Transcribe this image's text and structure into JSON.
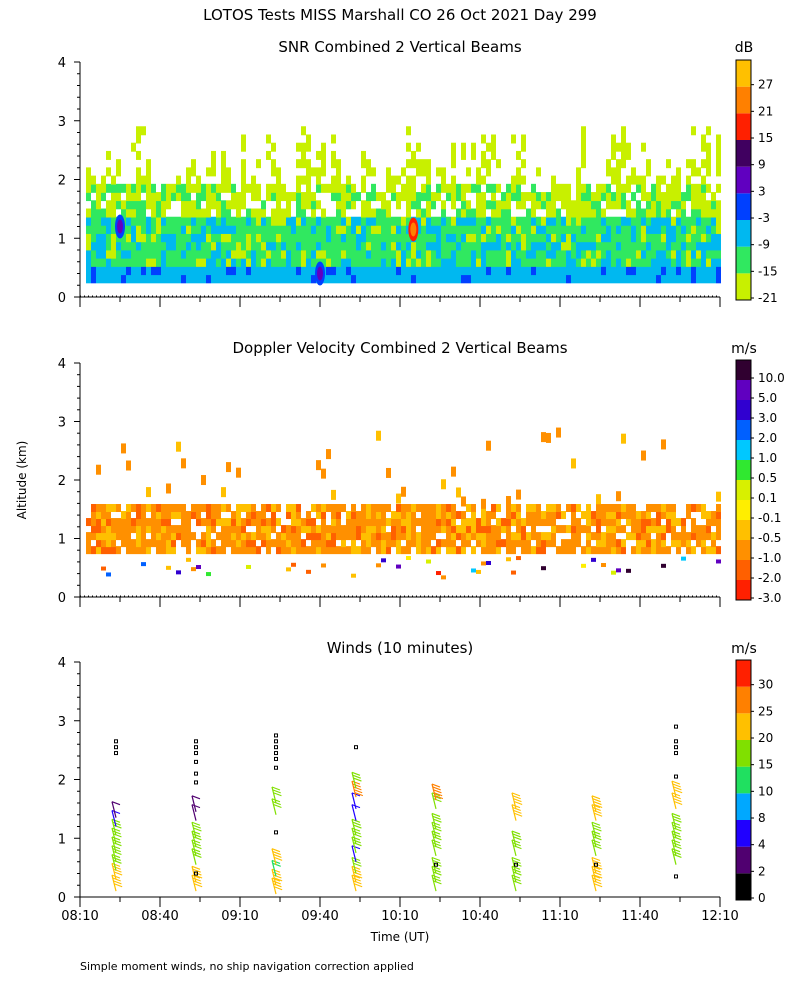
{
  "figure": {
    "title": "LOTOS Tests MISS Marshall CO  26 Oct 2021 Day 299",
    "ylabel": "Altitude (km)",
    "xlabel": "Time (UT)",
    "footnote": "Simple moment winds, no ship navigation correction applied"
  },
  "x_ticks": [
    "08:10",
    "08:40",
    "09:10",
    "09:40",
    "10:10",
    "10:40",
    "11:10",
    "11:40",
    "12:10"
  ],
  "y_ticks": [
    "0",
    "1",
    "2",
    "3",
    "4"
  ],
  "colorbars": [
    {
      "unit": "dB",
      "colors": [
        "#c8f000",
        "#30e860",
        "#00b8f0",
        "#0040ff",
        "#6000c0",
        "#400060",
        "#ff2000",
        "#ff8000",
        "#ffc000"
      ],
      "labels": [
        "-21",
        "-15",
        "-9",
        "-3",
        "3",
        "9",
        "15",
        "21",
        "27"
      ]
    },
    {
      "unit": "m/s",
      "colors": [
        "#ff2000",
        "#ff6000",
        "#ff9000",
        "#ffc000",
        "#ffee00",
        "#d8f000",
        "#30e830",
        "#00c8ff",
        "#0060ff",
        "#3000d0",
        "#6000c0",
        "#300030"
      ],
      "labels": [
        "-3.0",
        "-2.0",
        "-1.0",
        "-0.5",
        "-0.1",
        "0.1",
        "0.5",
        "1.0",
        "2.0",
        "3.0",
        "5.0",
        "10.0"
      ]
    },
    {
      "unit": "m/s",
      "colors": [
        "#000000",
        "#500070",
        "#2000ff",
        "#00a8ff",
        "#20e060",
        "#80e000",
        "#ffc000",
        "#ff8000",
        "#ff2000"
      ],
      "labels": [
        "0",
        "2",
        "4",
        "8",
        "10",
        "15",
        "20",
        "25",
        "30"
      ]
    }
  ],
  "chart_data": [
    {
      "type": "heatmap",
      "title": "SNR Combined 2 Vertical Beams",
      "xlabel": "",
      "ylabel": "Altitude (km)",
      "xlim": [
        "08:10",
        "12:10"
      ],
      "ylim": [
        0,
        4
      ],
      "unit": "dB",
      "colorscale": [
        -21,
        -15,
        -9,
        -3,
        3,
        9,
        15,
        21,
        27
      ],
      "features": [
        {
          "desc": "lowest band",
          "alt_km": [
            0.25,
            0.45
          ],
          "snr_db": -9
        },
        {
          "desc": "mid band",
          "alt_km": [
            0.45,
            1.3
          ],
          "snr_db": -15
        },
        {
          "desc": "upper band",
          "alt_km": [
            1.3,
            3.3
          ],
          "snr_db": -21
        },
        {
          "desc": "peak",
          "time": "08:25",
          "alt_km": 1.2,
          "snr_db": 3
        },
        {
          "desc": "peak",
          "time": "09:40",
          "alt_km": 0.4,
          "snr_db": 3
        },
        {
          "desc": "peak",
          "time": "10:15",
          "alt_km": 1.15,
          "snr_db": 21
        }
      ]
    },
    {
      "type": "heatmap",
      "title": "Doppler Velocity Combined 2 Vertical Beams",
      "xlabel": "",
      "ylabel": "Altitude (km)",
      "xlim": [
        "08:10",
        "12:10"
      ],
      "ylim": [
        0,
        4
      ],
      "unit": "m/s",
      "colorscale": [
        -3.0,
        -2.0,
        -1.0,
        -0.5,
        -0.1,
        0.1,
        0.5,
        1.0,
        2.0,
        3.0,
        5.0,
        10.0
      ],
      "features": [
        {
          "desc": "dominant layer",
          "alt_km": [
            0.7,
            1.5
          ],
          "velocity_ms": -1.0
        },
        {
          "desc": "sparse patches",
          "alt_km": [
            1.5,
            2.9
          ],
          "velocity_ms": -1.0
        },
        {
          "desc": "mixed band",
          "alt_km": [
            0.3,
            0.7
          ],
          "velocity_ms": -2.0
        }
      ]
    },
    {
      "type": "scatter",
      "title": "Winds (10 minutes)",
      "xlabel": "Time (UT)",
      "ylabel": "Altitude (km)",
      "xlim": [
        "08:10",
        "12:10"
      ],
      "ylim": [
        0,
        4
      ],
      "unit": "m/s",
      "colorscale": [
        0,
        2,
        4,
        8,
        10,
        15,
        20,
        25,
        30
      ],
      "profiles": [
        {
          "time": "08:25",
          "barbs": [
            {
              "alt": 0.1,
              "speed": 20
            },
            {
              "alt": 0.3,
              "speed": 20
            },
            {
              "alt": 0.45,
              "speed": 15
            },
            {
              "alt": 0.6,
              "speed": 15
            },
            {
              "alt": 0.75,
              "speed": 15
            },
            {
              "alt": 0.9,
              "speed": 15
            },
            {
              "alt": 1.05,
              "speed": 15
            },
            {
              "alt": 1.2,
              "speed": 4
            },
            {
              "alt": 1.35,
              "speed": 2
            },
            {
              "alt": 2.45,
              "speed": 0
            },
            {
              "alt": 2.55,
              "speed": 0
            },
            {
              "alt": 2.65,
              "speed": 0
            }
          ]
        },
        {
          "time": "08:55",
          "barbs": [
            {
              "alt": 0.1,
              "speed": 20
            },
            {
              "alt": 0.25,
              "speed": 20
            },
            {
              "alt": 0.4,
              "speed": 0
            },
            {
              "alt": 0.55,
              "speed": 15
            },
            {
              "alt": 0.7,
              "speed": 15
            },
            {
              "alt": 0.85,
              "speed": 15
            },
            {
              "alt": 1.0,
              "speed": 15
            },
            {
              "alt": 1.3,
              "speed": 2
            },
            {
              "alt": 1.45,
              "speed": 2
            },
            {
              "alt": 1.95,
              "speed": 0
            },
            {
              "alt": 2.1,
              "speed": 0
            },
            {
              "alt": 2.3,
              "speed": 0
            },
            {
              "alt": 2.45,
              "speed": 0
            },
            {
              "alt": 2.55,
              "speed": 0
            },
            {
              "alt": 2.65,
              "speed": 0
            }
          ]
        },
        {
          "time": "09:25",
          "barbs": [
            {
              "alt": 0.05,
              "speed": 20
            },
            {
              "alt": 0.2,
              "speed": 20
            },
            {
              "alt": 0.35,
              "speed": 10
            },
            {
              "alt": 0.55,
              "speed": 20
            },
            {
              "alt": 1.1,
              "speed": 0
            },
            {
              "alt": 1.4,
              "speed": 15
            },
            {
              "alt": 1.6,
              "speed": 15
            },
            {
              "alt": 2.2,
              "speed": 0
            },
            {
              "alt": 2.35,
              "speed": 0
            },
            {
              "alt": 2.45,
              "speed": 0
            },
            {
              "alt": 2.55,
              "speed": 0
            },
            {
              "alt": 2.65,
              "speed": 0
            },
            {
              "alt": 2.75,
              "speed": 0
            }
          ]
        },
        {
          "time": "09:55",
          "barbs": [
            {
              "alt": 0.1,
              "speed": 20
            },
            {
              "alt": 0.25,
              "speed": 20
            },
            {
              "alt": 0.4,
              "speed": 15
            },
            {
              "alt": 0.6,
              "speed": 4
            },
            {
              "alt": 0.75,
              "speed": 15
            },
            {
              "alt": 0.9,
              "speed": 15
            },
            {
              "alt": 1.05,
              "speed": 15
            },
            {
              "alt": 1.3,
              "speed": 4
            },
            {
              "alt": 1.5,
              "speed": 4
            },
            {
              "alt": 1.7,
              "speed": 25
            },
            {
              "alt": 1.85,
              "speed": 15
            },
            {
              "alt": 2.55,
              "speed": 0
            }
          ]
        },
        {
          "time": "10:25",
          "barbs": [
            {
              "alt": 0.1,
              "speed": 15
            },
            {
              "alt": 0.25,
              "speed": 15
            },
            {
              "alt": 0.4,
              "speed": 15
            },
            {
              "alt": 0.55,
              "speed": 0
            },
            {
              "alt": 0.7,
              "speed": 15
            },
            {
              "alt": 0.85,
              "speed": 15
            },
            {
              "alt": 1.0,
              "speed": 15
            },
            {
              "alt": 1.15,
              "speed": 15
            },
            {
              "alt": 1.5,
              "speed": 15
            },
            {
              "alt": 1.65,
              "speed": 25
            }
          ]
        },
        {
          "time": "10:55",
          "barbs": [
            {
              "alt": 0.1,
              "speed": 15
            },
            {
              "alt": 0.25,
              "speed": 15
            },
            {
              "alt": 0.4,
              "speed": 15
            },
            {
              "alt": 0.55,
              "speed": 0
            },
            {
              "alt": 0.7,
              "speed": 15
            },
            {
              "alt": 0.85,
              "speed": 15
            },
            {
              "alt": 1.3,
              "speed": 20
            },
            {
              "alt": 1.5,
              "speed": 20
            }
          ]
        },
        {
          "time": "11:25",
          "barbs": [
            {
              "alt": 0.1,
              "speed": 20
            },
            {
              "alt": 0.25,
              "speed": 20
            },
            {
              "alt": 0.4,
              "speed": 20
            },
            {
              "alt": 0.55,
              "speed": 0
            },
            {
              "alt": 0.7,
              "speed": 15
            },
            {
              "alt": 0.85,
              "speed": 15
            },
            {
              "alt": 1.0,
              "speed": 15
            },
            {
              "alt": 1.3,
              "speed": 20
            },
            {
              "alt": 1.45,
              "speed": 20
            }
          ]
        },
        {
          "time": "11:55",
          "barbs": [
            {
              "alt": 0.35,
              "speed": 0
            },
            {
              "alt": 0.55,
              "speed": 15
            },
            {
              "alt": 0.7,
              "speed": 15
            },
            {
              "alt": 0.85,
              "speed": 15
            },
            {
              "alt": 1.0,
              "speed": 15
            },
            {
              "alt": 1.15,
              "speed": 15
            },
            {
              "alt": 1.5,
              "speed": 20
            },
            {
              "alt": 1.7,
              "speed": 20
            },
            {
              "alt": 2.05,
              "speed": 0
            },
            {
              "alt": 2.45,
              "speed": 0
            },
            {
              "alt": 2.55,
              "speed": 0
            },
            {
              "alt": 2.65,
              "speed": 0
            },
            {
              "alt": 2.9,
              "speed": 0
            }
          ]
        }
      ]
    }
  ]
}
